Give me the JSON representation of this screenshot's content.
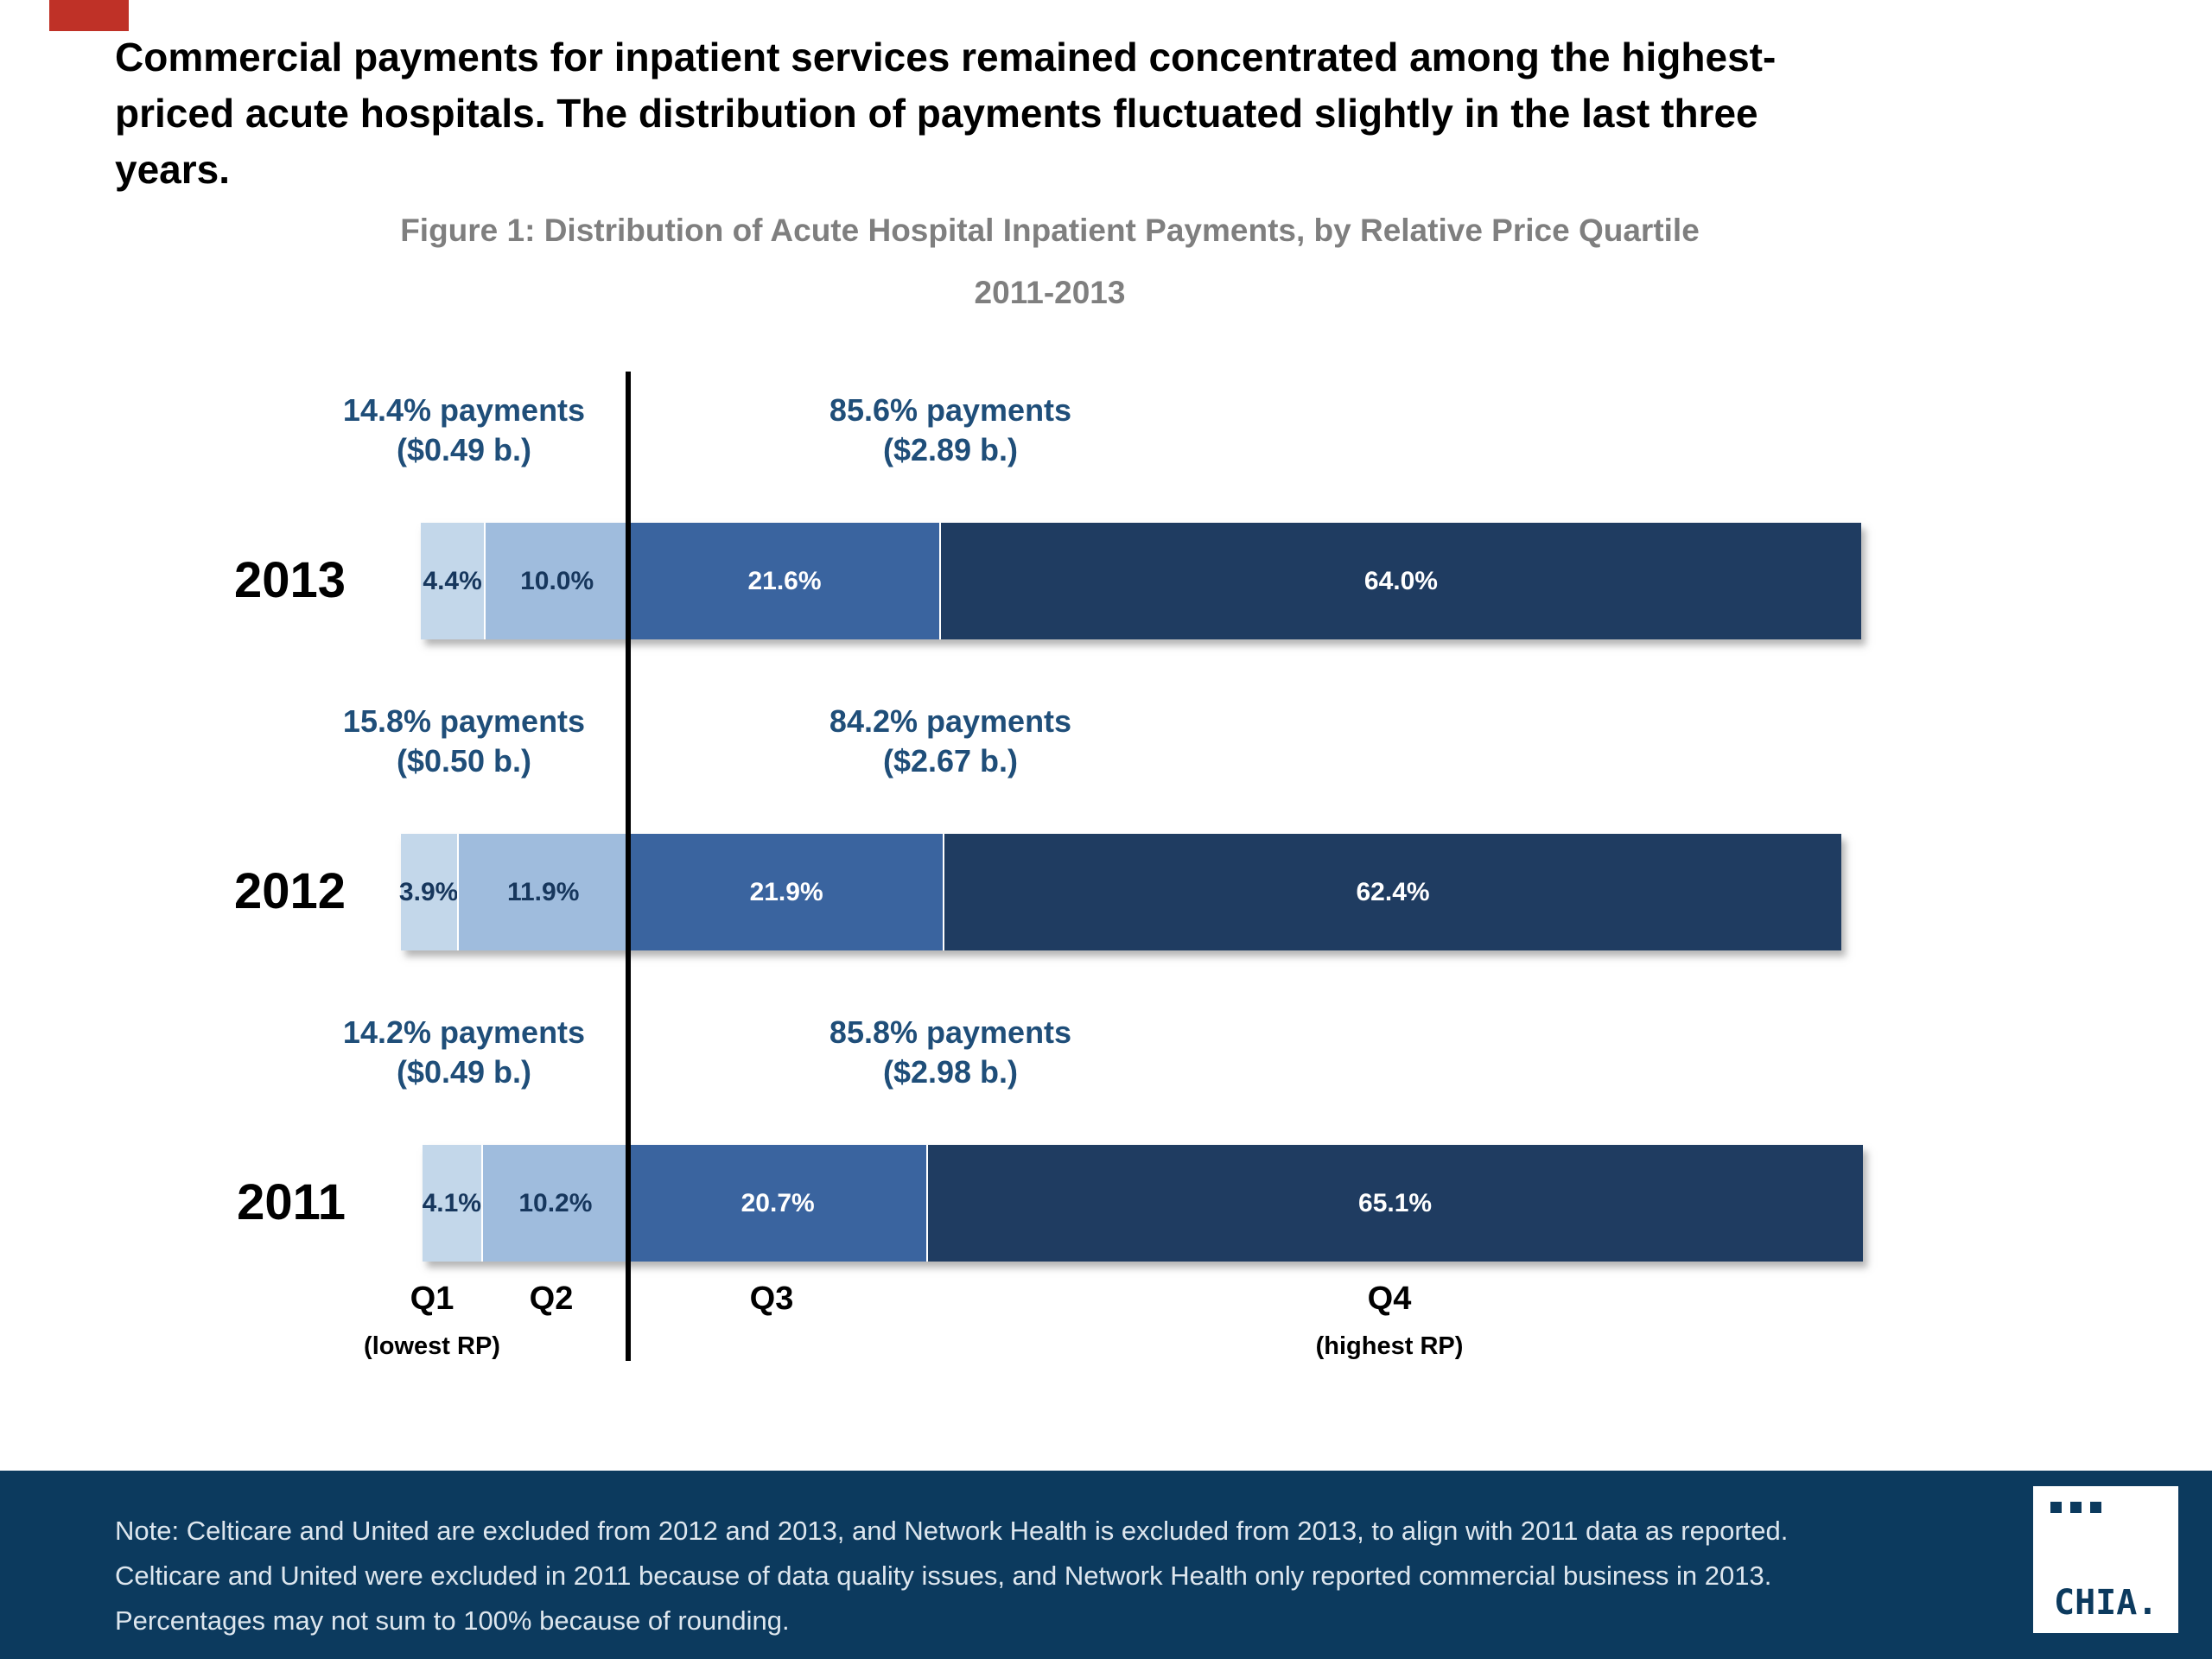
{
  "page": {
    "heading_lines": [
      "Commercial payments for inpatient services remained concentrated among the highest-",
      "priced acute hospitals. The distribution of payments fluctuated slightly in the last three",
      "years."
    ],
    "colors": {
      "footer_bg": "#0c3a5e",
      "note_text": "#dde6ee",
      "marker_red": "#bf3127",
      "figure_title_gray": "#7f7f7f"
    }
  },
  "figure": {
    "title": "Figure 1: Distribution of Acute Hospital Inpatient Payments, by Relative Price Quartile",
    "subtitle": "2011-2013"
  },
  "chart_data": {
    "type": "bar",
    "orientation": "horizontal-stacked",
    "units": "percent of payments",
    "xlim": [
      0,
      100
    ],
    "quartile_labels": [
      "Q1",
      "Q2",
      "Q3",
      "Q4"
    ],
    "q1_sub": "(lowest RP)",
    "q4_sub": "(highest RP)",
    "series": [
      {
        "year": "2013",
        "values": [
          4.4,
          10.0,
          21.6,
          64.0
        ],
        "labels": [
          "4.4%",
          "10.0%",
          "21.6%",
          "64.0%"
        ],
        "left_annotation": {
          "line1": "14.4% payments",
          "line2": "($0.49 b.)"
        },
        "right_annotation": {
          "line1": "85.6% payments",
          "line2": "($2.89 b.)"
        }
      },
      {
        "year": "2012",
        "values": [
          3.9,
          11.9,
          21.9,
          62.4
        ],
        "labels": [
          "3.9%",
          "11.9%",
          "21.9%",
          "62.4%"
        ],
        "left_annotation": {
          "line1": "15.8% payments",
          "line2": "($0.50 b.)"
        },
        "right_annotation": {
          "line1": "84.2% payments",
          "line2": "($2.67 b.)"
        }
      },
      {
        "year": "2011",
        "values": [
          4.1,
          10.2,
          20.7,
          65.1
        ],
        "labels": [
          "4.1%",
          "10.2%",
          "20.7%",
          "65.1%"
        ],
        "left_annotation": {
          "line1": "14.2% payments",
          "line2": "($0.49 b.)"
        },
        "right_annotation": {
          "line1": "85.8% payments",
          "line2": "($2.98 b.)"
        }
      }
    ],
    "colors": {
      "q1": "#c3d7ea",
      "q2": "#9fbcdd",
      "q3": "#3a649f",
      "q4": "#1f3c61",
      "label_dark": "#17375d",
      "label_light": "#ffffff",
      "annotation": "#1f4e79",
      "divider": "#000000"
    }
  },
  "note": {
    "lines": [
      "Note: Celticare and United are excluded from 2012 and 2013, and Network Health is excluded from 2013, to align with 2011 data as reported.",
      "Celticare and United were excluded in 2011 because of data quality issues, and Network Health only reported commercial business in 2013.",
      "Percentages may not sum to 100% because of rounding."
    ]
  },
  "logo": {
    "text": "CHIA."
  }
}
